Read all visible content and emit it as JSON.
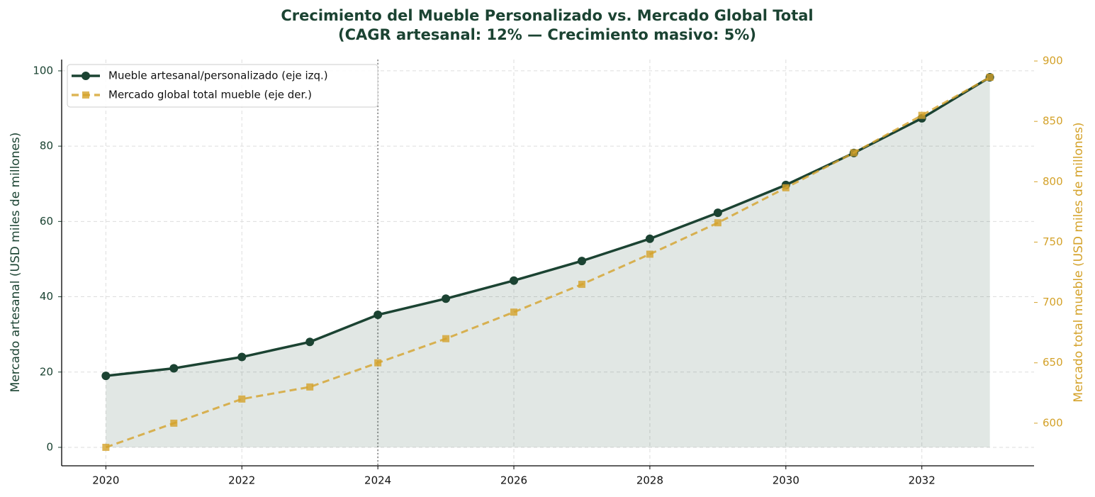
{
  "chart_data": {
    "type": "line",
    "title": "Crecimiento del Mueble Personalizado vs. Mercado Global Total",
    "subtitle": "(CAGR artesanal: 12% — Crecimiento masivo: 5%)",
    "y_label": "Mercado artesanal (USD miles de millones)",
    "y2_label": "Mercado total mueble (USD miles de millones)",
    "x": [
      2020,
      2021,
      2022,
      2023,
      2024,
      2025,
      2026,
      2027,
      2028,
      2029,
      2030,
      2031,
      2032,
      2033
    ],
    "series": [
      {
        "name": "Mueble artesanal/personalizado (eje izq.)",
        "color": "#1b4332",
        "axis": "y",
        "marker": "circle",
        "fill": true,
        "values": [
          19,
          21,
          24,
          28,
          35.2,
          39.5,
          44.3,
          49.5,
          55.4,
          62.3,
          69.7,
          78.2,
          87.4,
          98.3
        ]
      },
      {
        "name": "Mercado global total mueble (eje der.)",
        "color": "#d4a22a",
        "axis": "y2",
        "marker": "square",
        "dashed": true,
        "values": [
          580,
          600,
          620,
          630,
          650,
          670,
          692,
          715,
          740,
          766,
          795,
          824,
          855,
          886.5
        ]
      }
    ],
    "xlim": [
      2019.35,
      2033.65
    ],
    "xticks": [
      2020,
      2022,
      2024,
      2026,
      2028,
      2030,
      2032
    ],
    "ylim": [
      -4.9,
      103
    ],
    "yticks": [
      0,
      20,
      40,
      60,
      80,
      100
    ],
    "y2lim": [
      564.7,
      901.2
    ],
    "y2ticks": [
      600,
      650,
      700,
      750,
      800,
      850,
      900
    ],
    "vline": 2024,
    "grid": true,
    "legend": "upper left"
  }
}
